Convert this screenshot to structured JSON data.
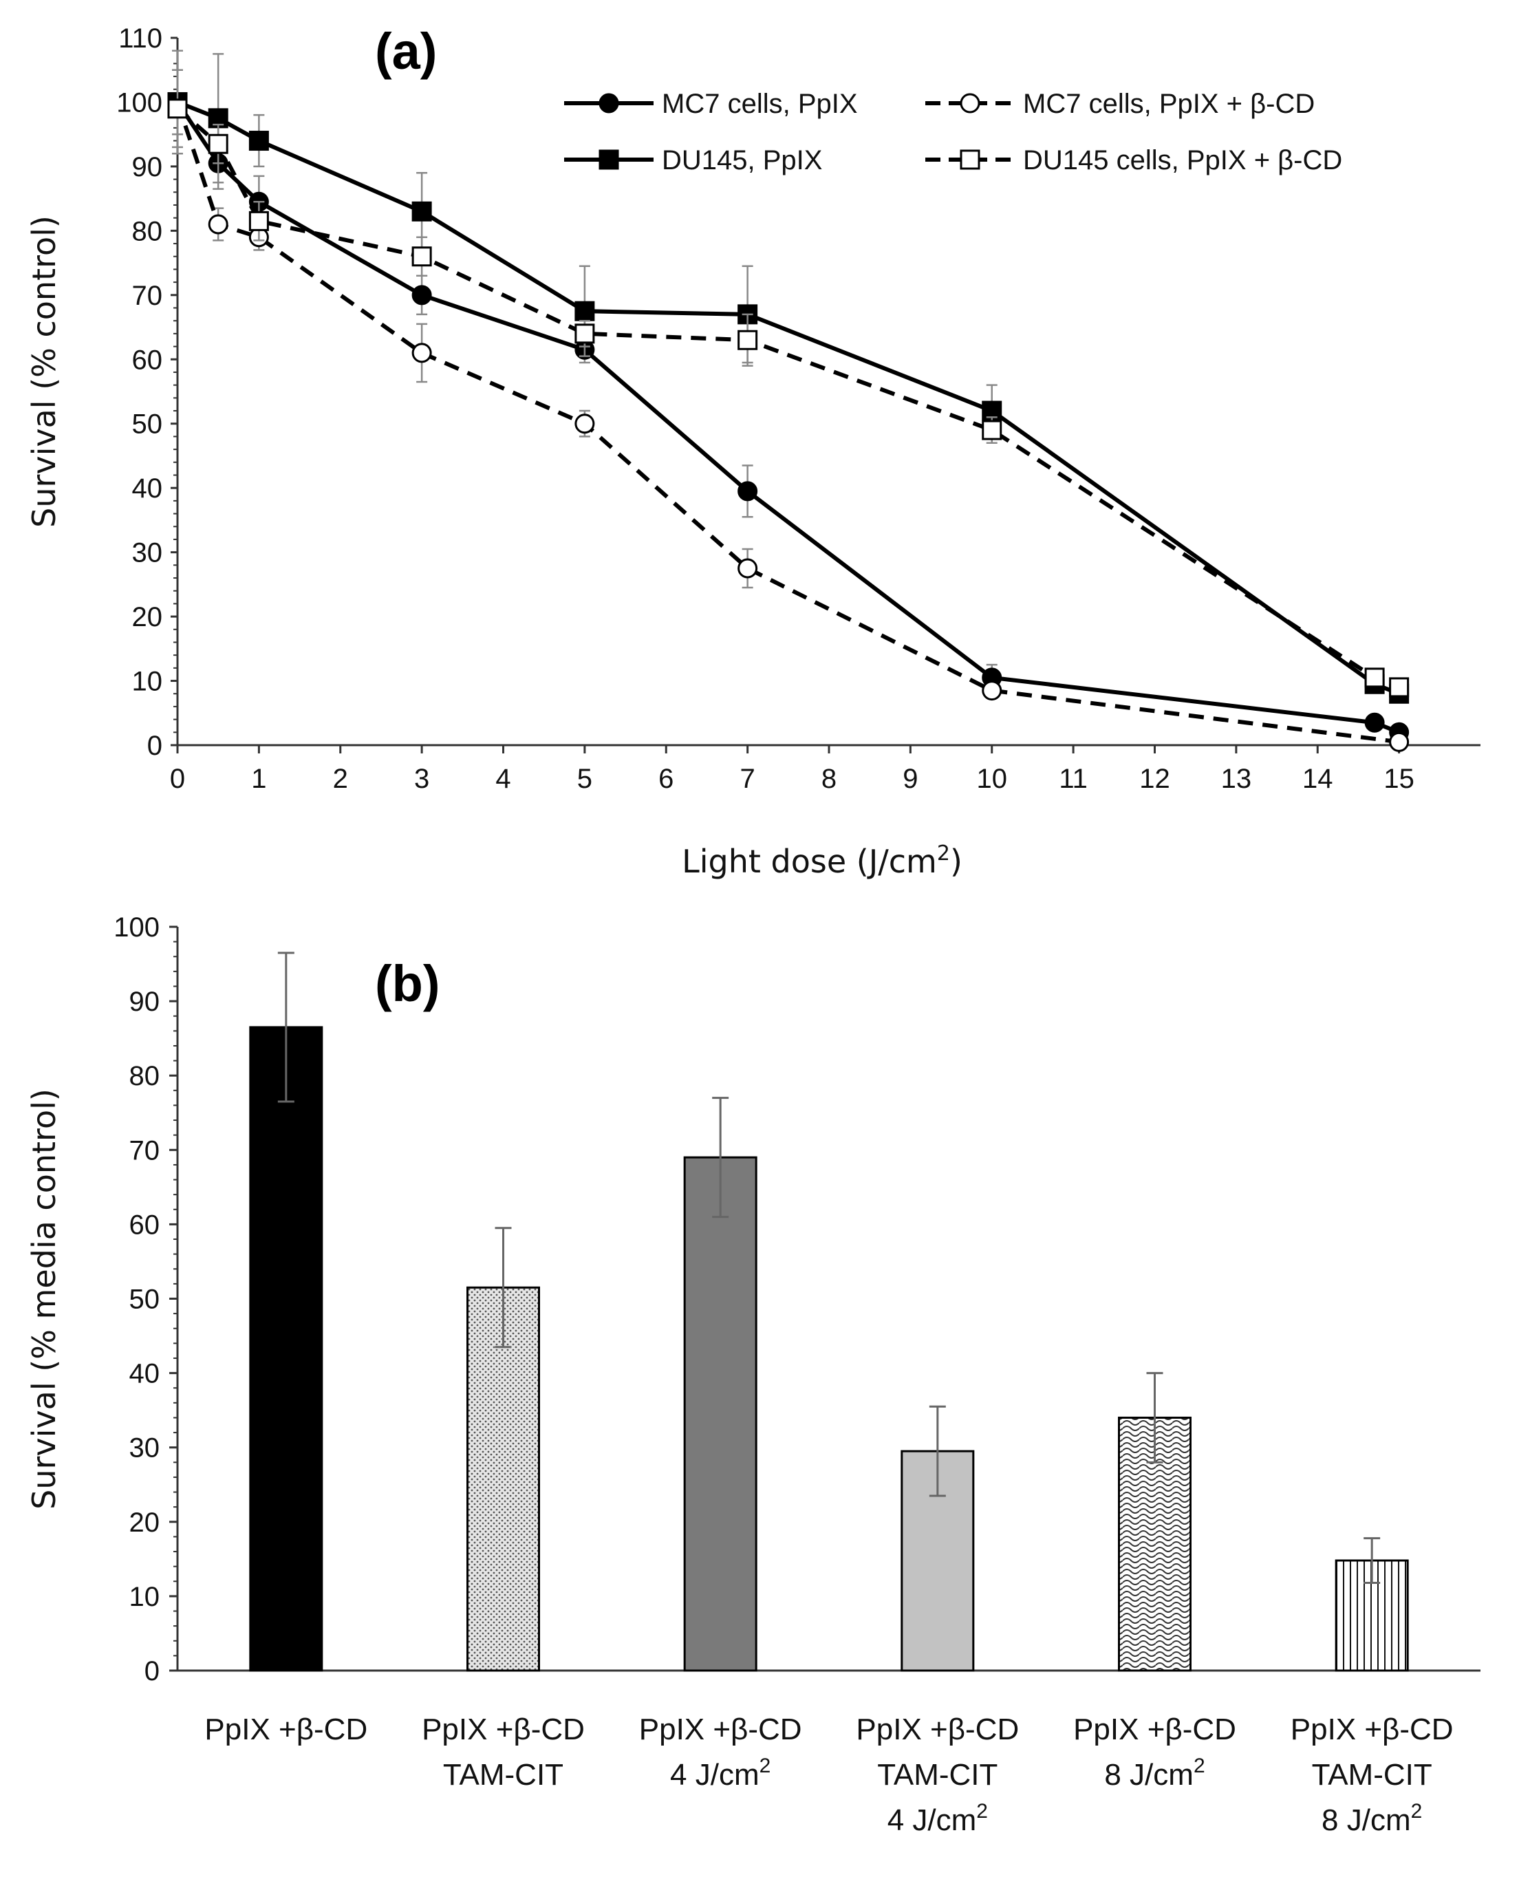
{
  "chart_data": [
    {
      "type": "line",
      "panel_label": "(a)",
      "xlabel": "Light dose (J/cm",
      "xlabel_sup": "2",
      "xlabel_end": ")",
      "ylabel": "Survival (% control)",
      "xlim": [
        0,
        16
      ],
      "ylim": [
        0,
        110
      ],
      "xticks": [
        "0",
        "1",
        "2",
        "3",
        "4",
        "5",
        "6",
        "7",
        "8",
        "9",
        "10",
        "11",
        "12",
        "13",
        "14",
        "15"
      ],
      "yticks": [
        "0",
        "10",
        "20",
        "30",
        "40",
        "50",
        "60",
        "70",
        "80",
        "90",
        "100",
        "110"
      ],
      "legend_position": "top-right",
      "series": [
        {
          "name": "MC7 cells, PpIX",
          "marker": "filled-circle",
          "line": "solid",
          "x": [
            0,
            0.5,
            1,
            3,
            5,
            7,
            10,
            14.7,
            15
          ],
          "y": [
            100,
            90.5,
            84.5,
            70,
            61.5,
            39.5,
            10.5,
            3.5,
            2
          ],
          "err": [
            5,
            4,
            4,
            3,
            2,
            4,
            2,
            1,
            1
          ]
        },
        {
          "name": "MC7 cells, PpIX + β-CD",
          "marker": "open-circle",
          "line": "dashed",
          "x": [
            0,
            0.5,
            1,
            3,
            5,
            7,
            10,
            15
          ],
          "y": [
            100,
            81,
            79,
            61,
            50,
            27.5,
            8.5,
            0.5
          ],
          "err": [
            8,
            2.5,
            2,
            4.5,
            2,
            3,
            1,
            0.5
          ]
        },
        {
          "name": "DU145, PpIX",
          "marker": "filled-square",
          "line": "solid",
          "x": [
            0,
            0.5,
            1,
            3,
            5,
            7,
            10,
            14.7,
            15
          ],
          "y": [
            100,
            97.5,
            94,
            83,
            67.5,
            67,
            52,
            9.5,
            8
          ],
          "err": [
            5,
            10,
            4,
            6,
            7,
            7.5,
            4,
            1,
            1
          ]
        },
        {
          "name": "DU145 cells, PpIX + β-CD",
          "marker": "open-square",
          "line": "dashed",
          "x": [
            0,
            0.5,
            1,
            3,
            5,
            7,
            10,
            14.7,
            15
          ],
          "y": [
            99,
            93.5,
            81.5,
            76,
            64,
            63,
            49,
            10.5,
            9
          ],
          "err": [
            6,
            3,
            3,
            3,
            2,
            4,
            2,
            1,
            1
          ]
        }
      ]
    },
    {
      "type": "bar",
      "panel_label": "(b)",
      "xlabel": "",
      "ylabel": "Survival (% media control)",
      "ylim": [
        0,
        100
      ],
      "yticks": [
        "0",
        "10",
        "20",
        "30",
        "40",
        "50",
        "60",
        "70",
        "80",
        "90",
        "100"
      ],
      "categories": [
        {
          "lines": [
            "PpIX +β-CD"
          ],
          "sup_line": null
        },
        {
          "lines": [
            "PpIX +β-CD",
            "TAM-CIT"
          ],
          "sup_line": null
        },
        {
          "lines": [
            "PpIX +β-CD",
            "4 J/cm"
          ],
          "sup_line": "2"
        },
        {
          "lines": [
            "PpIX +β-CD",
            "TAM-CIT",
            "4 J/cm"
          ],
          "sup_line": "2"
        },
        {
          "lines": [
            "PpIX +β-CD",
            "8 J/cm"
          ],
          "sup_line": "2"
        },
        {
          "lines": [
            "PpIX +β-CD",
            "TAM-CIT",
            "8 J/cm"
          ],
          "sup_line": "2"
        }
      ],
      "values": [
        86.5,
        51.5,
        69,
        29.5,
        34,
        14.8
      ],
      "errors": [
        10,
        8,
        8,
        6,
        6,
        3
      ],
      "fills": [
        "solid-black",
        "fine-dots",
        "solid-darkgray",
        "solid-lightgray",
        "wave-pattern",
        "vertical-lines"
      ],
      "colors": {
        "black": "#000000",
        "darkgray": "#7a7a7a",
        "lightgray": "#c2c2c2"
      }
    }
  ]
}
